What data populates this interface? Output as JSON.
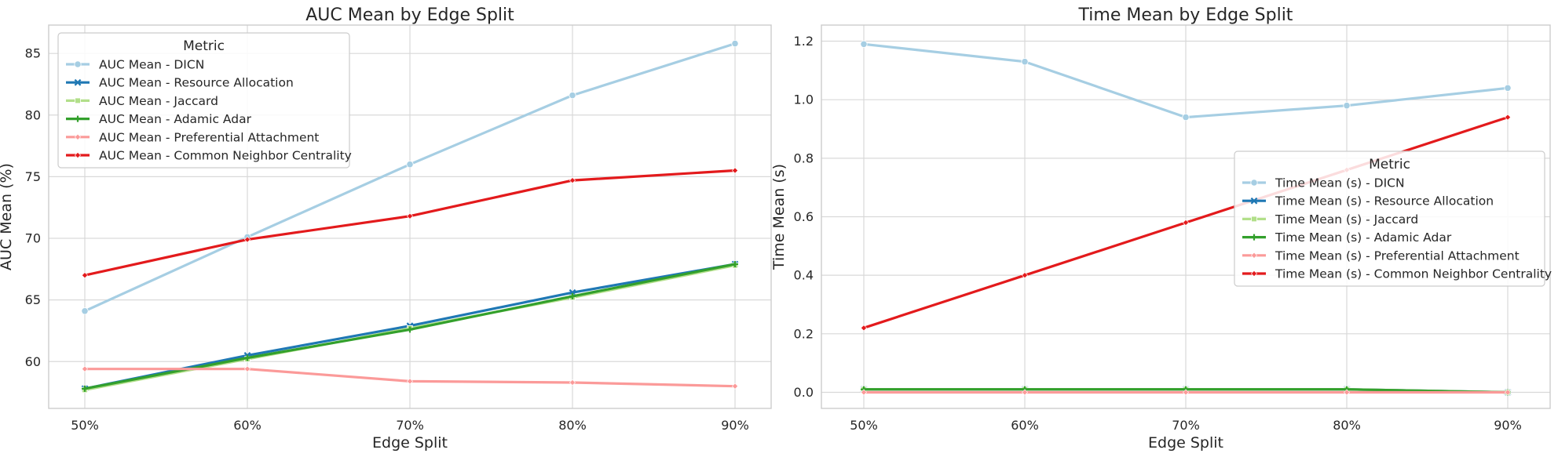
{
  "chart_data": [
    {
      "type": "line",
      "title": "AUC Mean by Edge Split",
      "xlabel": "Edge Split",
      "ylabel": "AUC Mean (%)",
      "categories": [
        "50%",
        "60%",
        "70%",
        "80%",
        "90%"
      ],
      "ylim": [
        56.2,
        87.3
      ],
      "yticks": [
        60,
        65,
        70,
        75,
        80,
        85
      ],
      "grid": true,
      "legend": {
        "title": "Metric",
        "placement": "top-left"
      },
      "series": [
        {
          "name": "AUC Mean - DICN",
          "color": "#a6cee3",
          "marker": "circle",
          "values": [
            64.1,
            70.1,
            76.0,
            81.6,
            85.8
          ]
        },
        {
          "name": "AUC Mean - Resource Allocation",
          "color": "#1f78b4",
          "marker": "x",
          "values": [
            57.8,
            60.5,
            62.9,
            65.6,
            67.9
          ]
        },
        {
          "name": "AUC Mean - Jaccard",
          "color": "#b2df8a",
          "marker": "square",
          "values": [
            57.7,
            60.2,
            62.7,
            65.2,
            67.8
          ]
        },
        {
          "name": "AUC Mean - Adamic Adar",
          "color": "#33a02c",
          "marker": "plus",
          "values": [
            57.8,
            60.3,
            62.6,
            65.3,
            67.9
          ]
        },
        {
          "name": "AUC Mean - Preferential Attachment",
          "color": "#fb9a99",
          "marker": "diamond",
          "values": [
            59.4,
            59.4,
            58.4,
            58.3,
            58.0
          ]
        },
        {
          "name": "AUC Mean - Common Neighbor Centrality",
          "color": "#e31a1c",
          "marker": "diamond",
          "values": [
            67.0,
            69.9,
            71.8,
            74.7,
            75.5
          ]
        }
      ]
    },
    {
      "type": "line",
      "title": "Time Mean by Edge Split",
      "xlabel": "Edge Split",
      "ylabel": "Time Mean (s)",
      "categories": [
        "50%",
        "60%",
        "70%",
        "80%",
        "90%"
      ],
      "ylim": [
        -0.055,
        1.255
      ],
      "yticks": [
        0.0,
        0.2,
        0.4,
        0.6,
        0.8,
        1.0,
        1.2
      ],
      "grid": true,
      "legend": {
        "title": "Metric",
        "placement": "center-right"
      },
      "series": [
        {
          "name": "Time Mean (s) - DICN",
          "color": "#a6cee3",
          "marker": "circle",
          "values": [
            1.19,
            1.13,
            0.94,
            0.98,
            1.04
          ]
        },
        {
          "name": "Time Mean (s) - Resource Allocation",
          "color": "#1f78b4",
          "marker": "x",
          "values": [
            0.01,
            0.01,
            0.01,
            0.01,
            0.0
          ]
        },
        {
          "name": "Time Mean (s) - Jaccard",
          "color": "#b2df8a",
          "marker": "square",
          "values": [
            0.01,
            0.01,
            0.01,
            0.01,
            0.0
          ]
        },
        {
          "name": "Time Mean (s) - Adamic Adar",
          "color": "#33a02c",
          "marker": "plus",
          "values": [
            0.01,
            0.01,
            0.01,
            0.01,
            0.0
          ]
        },
        {
          "name": "Time Mean (s) - Preferential Attachment",
          "color": "#fb9a99",
          "marker": "diamond",
          "values": [
            0.0,
            0.0,
            0.0,
            0.0,
            0.0
          ]
        },
        {
          "name": "Time Mean (s) - Common Neighbor Centrality",
          "color": "#e31a1c",
          "marker": "diamond",
          "values": [
            0.22,
            0.4,
            0.58,
            0.76,
            0.94
          ]
        }
      ]
    }
  ]
}
